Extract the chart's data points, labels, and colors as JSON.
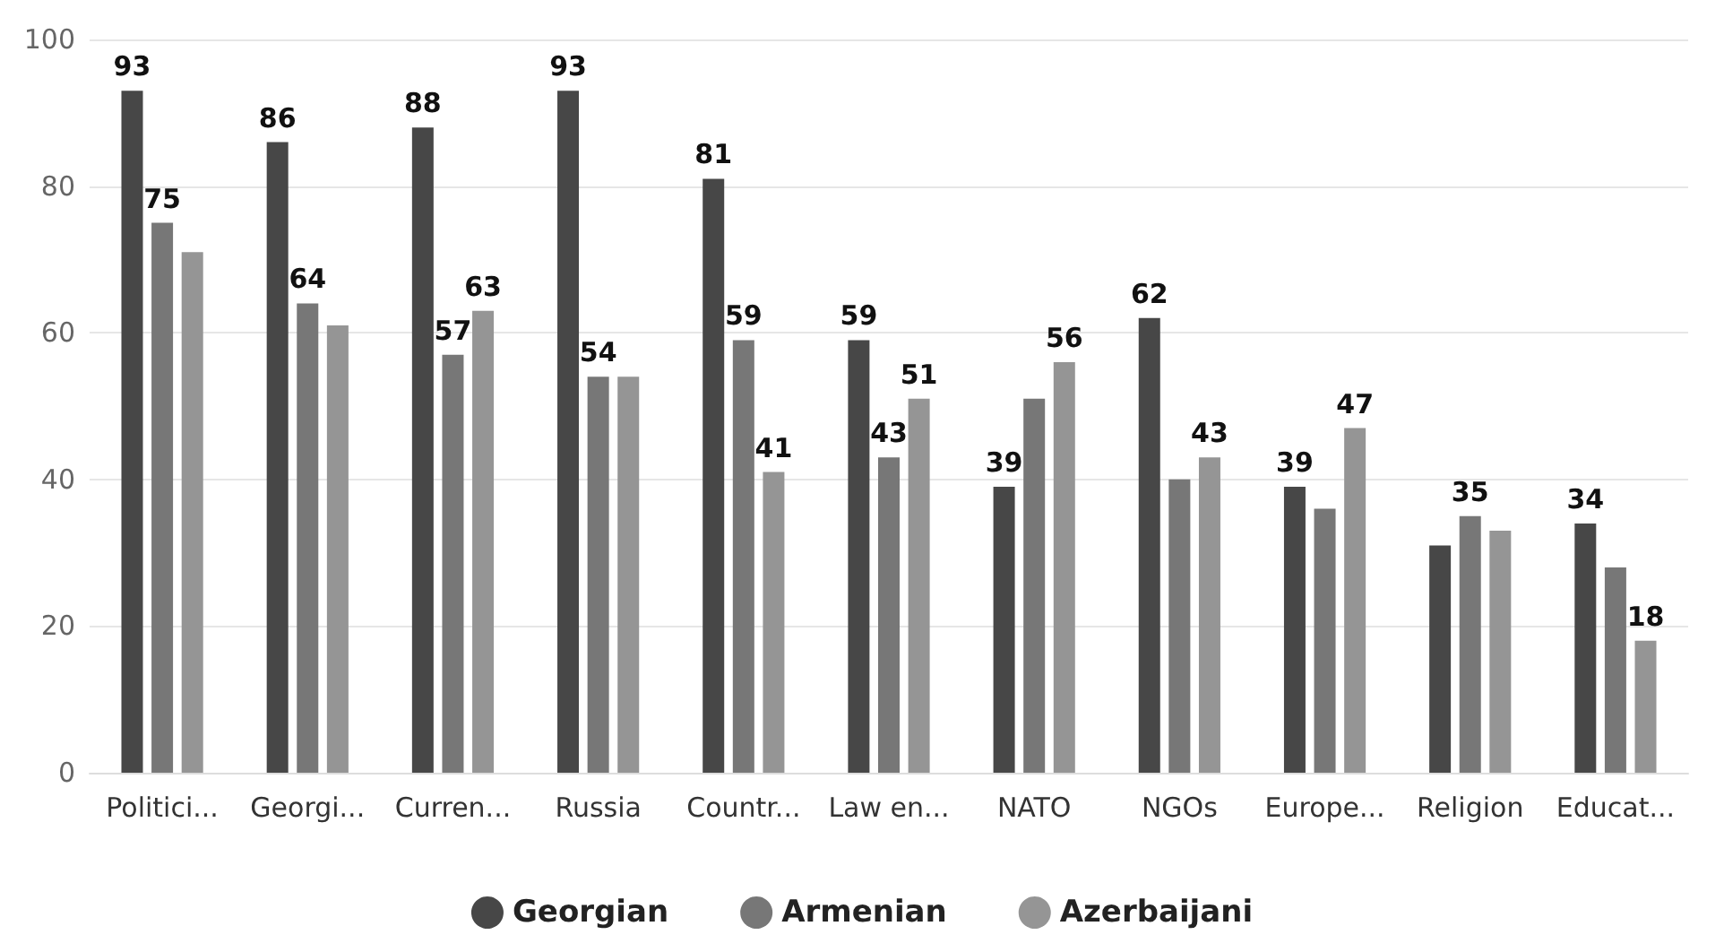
{
  "chart_data": {
    "type": "bar",
    "categories": [
      "Politici...",
      "Georgi...",
      "Curren...",
      "Russia",
      "Countr...",
      "Law en...",
      "NATO",
      "NGOs",
      "Europe...",
      "Religion",
      "Educat..."
    ],
    "series": [
      {
        "name": "Georgian",
        "color": "#474747",
        "values": [
          93,
          86,
          88,
          93,
          81,
          59,
          39,
          62,
          39,
          31,
          34
        ],
        "value_labels": [
          "93",
          "86",
          "88",
          "93",
          "81",
          "59",
          "39",
          "62",
          "39",
          null,
          "34"
        ]
      },
      {
        "name": "Armenian",
        "color": "#777777",
        "values": [
          75,
          64,
          57,
          54,
          59,
          43,
          51,
          40,
          36,
          35,
          28
        ],
        "value_labels": [
          "75",
          "64",
          "57",
          "54",
          "59",
          "43",
          null,
          null,
          null,
          "35",
          null
        ]
      },
      {
        "name": "Azerbaijani",
        "color": "#959595",
        "values": [
          71,
          61,
          63,
          54,
          41,
          51,
          56,
          43,
          47,
          33,
          18
        ],
        "value_labels": [
          null,
          null,
          "63",
          null,
          "41",
          "51",
          "56",
          "43",
          "47",
          null,
          "18"
        ]
      }
    ],
    "ylim": [
      0,
      100
    ],
    "yticks": [
      0,
      20,
      40,
      60,
      80,
      100
    ],
    "grid": "y",
    "legend": "bottom"
  }
}
